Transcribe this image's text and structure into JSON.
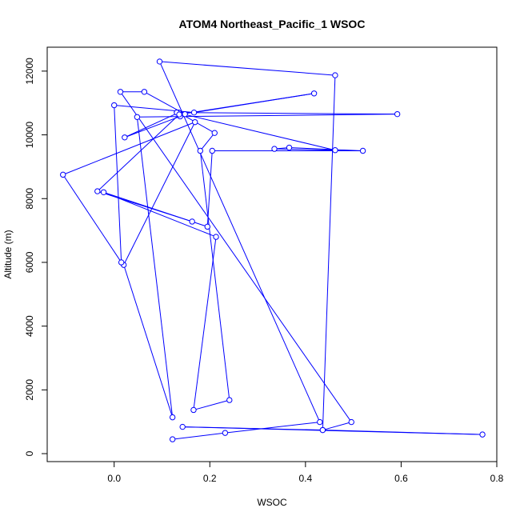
{
  "chart_data": {
    "type": "scatter",
    "title": "ATOM4 Northeast_Pacific_1 WSOC",
    "xlabel": "WSOC",
    "ylabel": "Altitude (m)",
    "xlim": [
      -0.14,
      0.8
    ],
    "ylim": [
      -250,
      12750
    ],
    "x_ticks": [
      0.0,
      0.2,
      0.4,
      0.6,
      0.8
    ],
    "x_tick_labels": [
      "0.0",
      "0.2",
      "0.4",
      "0.6",
      "0.8"
    ],
    "y_ticks": [
      0,
      2000,
      4000,
      6000,
      8000,
      10000,
      12000
    ],
    "y_tick_labels": [
      "0",
      "2000",
      "4000",
      "6000",
      "8000",
      "10000",
      "12000"
    ],
    "grid": false,
    "series_color": "#0000ff",
    "marker": "open-circle",
    "connected": true,
    "series": [
      {
        "x": [
          0.122,
          0.232,
          0.43,
          0.095,
          0.462,
          0.436,
          0.143,
          0.77,
          0.436,
          0.496,
          0.013,
          0.063,
          0.148,
          0.138,
          0.022,
          0.135,
          0.21,
          0.18,
          0.241,
          0.166,
          0.213,
          -0.022,
          0.195,
          0.205,
          0.52,
          0.366,
          0.335,
          0.462,
          0.131,
          0.131,
          0.592,
          0.048,
          0.122,
          0.02,
          0.169,
          -0.107,
          0.015,
          0.0,
          0.167,
          0.418,
          0.136,
          -0.035,
          0.163
        ],
        "y": [
          450,
          650,
          990,
          12300,
          11870,
          740,
          840,
          600,
          740,
          990,
          11350,
          11350,
          10650,
          10580,
          9920,
          10700,
          10060,
          9500,
          1680,
          1370,
          6800,
          8200,
          7120,
          9500,
          9500,
          9600,
          9560,
          9520,
          10700,
          10700,
          10650,
          10560,
          1140,
          5920,
          10400,
          8750,
          6000,
          10930,
          10700,
          11300,
          10640,
          8230,
          7280
        ]
      }
    ]
  }
}
